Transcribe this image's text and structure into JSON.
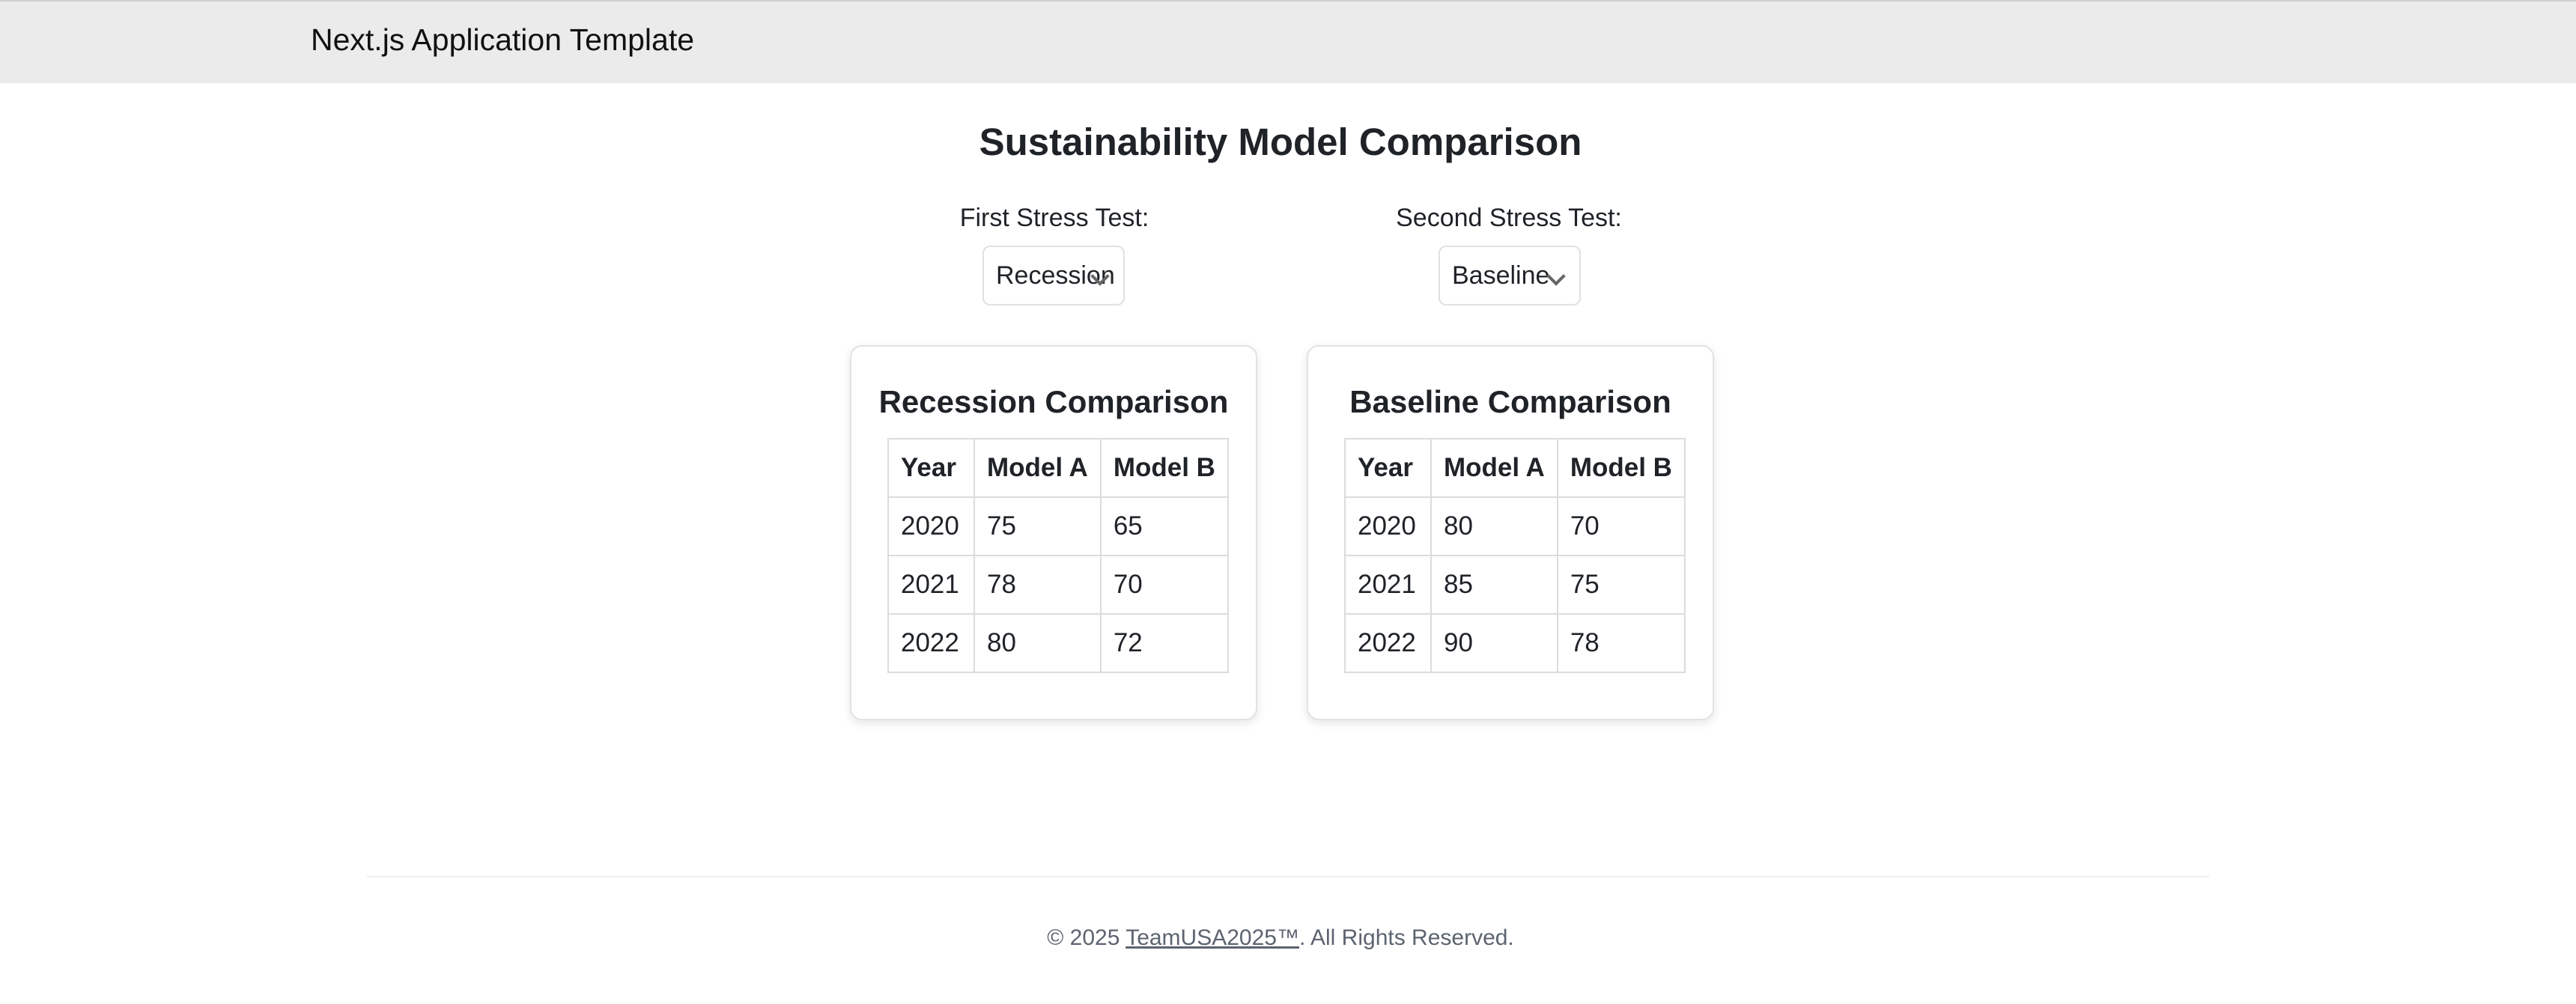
{
  "header": {
    "brand": "Next.js Application Template"
  },
  "main": {
    "title": "Sustainability Model Comparison",
    "selectors": [
      {
        "label": "First Stress Test:",
        "value": "Recession"
      },
      {
        "label": "Second Stress Test:",
        "value": "Baseline"
      }
    ],
    "cards": [
      {
        "title": "Recession Comparison",
        "columns": [
          "Year",
          "Model A",
          "Model B"
        ],
        "rows": [
          [
            "2020",
            "75",
            "65"
          ],
          [
            "2021",
            "78",
            "70"
          ],
          [
            "2022",
            "80",
            "72"
          ]
        ]
      },
      {
        "title": "Baseline Comparison",
        "columns": [
          "Year",
          "Model A",
          "Model B"
        ],
        "rows": [
          [
            "2020",
            "80",
            "70"
          ],
          [
            "2021",
            "85",
            "75"
          ],
          [
            "2022",
            "90",
            "78"
          ]
        ]
      }
    ]
  },
  "footer": {
    "prefix": "© 2025 ",
    "link_text": "TeamUSA2025™",
    "suffix": ". All Rights Reserved."
  },
  "icons": {
    "select_chevron": "chevron-down-icon"
  }
}
